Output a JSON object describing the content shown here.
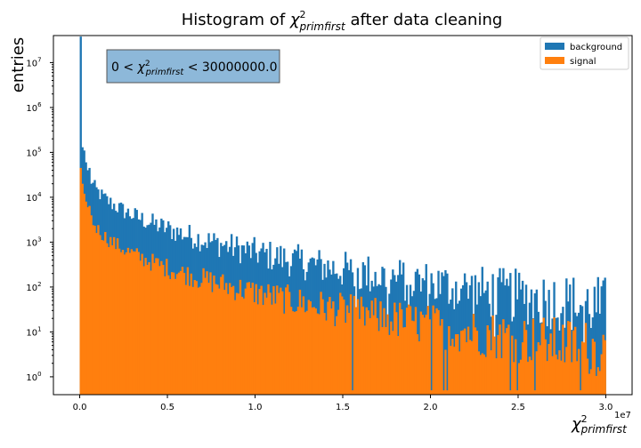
{
  "chart_data": {
    "type": "histogram",
    "title": {
      "pre": "Histogram of ",
      "sym": "χ",
      "sup": "2",
      "sub": "primfirst",
      "post": " after data cleaning"
    },
    "xlabel": {
      "sym": "χ",
      "sup": "2",
      "sub": "primfirst"
    },
    "ylabel": "entries",
    "x_offset_label": "1e7",
    "xlim": [
      -0.15,
      3.15
    ],
    "xlim_units": "1e7",
    "x_ticks": [
      0.0,
      0.5,
      1.0,
      1.5,
      2.0,
      2.5,
      3.0
    ],
    "x_tick_labels": [
      "0.0",
      "0.5",
      "1.0",
      "1.5",
      "2.0",
      "2.5",
      "3.0"
    ],
    "yscale": "log",
    "ylim": [
      0.4,
      40000000
    ],
    "y_ticks": [
      1,
      10,
      100,
      1000,
      10000,
      100000,
      1000000,
      10000000
    ],
    "y_tick_labels": [
      {
        "b": "10",
        "e": "0"
      },
      {
        "b": "10",
        "e": "1"
      },
      {
        "b": "10",
        "e": "2"
      },
      {
        "b": "10",
        "e": "3"
      },
      {
        "b": "10",
        "e": "4"
      },
      {
        "b": "10",
        "e": "5"
      },
      {
        "b": "10",
        "e": "6"
      },
      {
        "b": "10",
        "e": "7"
      }
    ],
    "range_annotation": {
      "pre": "0 < ",
      "sym": "χ",
      "sup": "2",
      "sub": "primfirst",
      "post": " < 30000000.0"
    },
    "bins": 300,
    "bin_range": [
      0,
      3.0
    ],
    "legend_position": "top-right",
    "series": [
      {
        "name": "background",
        "color": "#1f77b4",
        "value_model": {
          "first_bins": [
            38000000,
            130000,
            110000,
            60000,
            40000
          ],
          "decay_to": 35,
          "log_noise": 0.55
        }
      },
      {
        "name": "signal",
        "color": "#ff7f0e",
        "value_model": {
          "first_bins": [
            45000,
            20000,
            12000,
            8000,
            6000
          ],
          "decay_to": 4,
          "log_noise": 0.5
        }
      }
    ]
  }
}
